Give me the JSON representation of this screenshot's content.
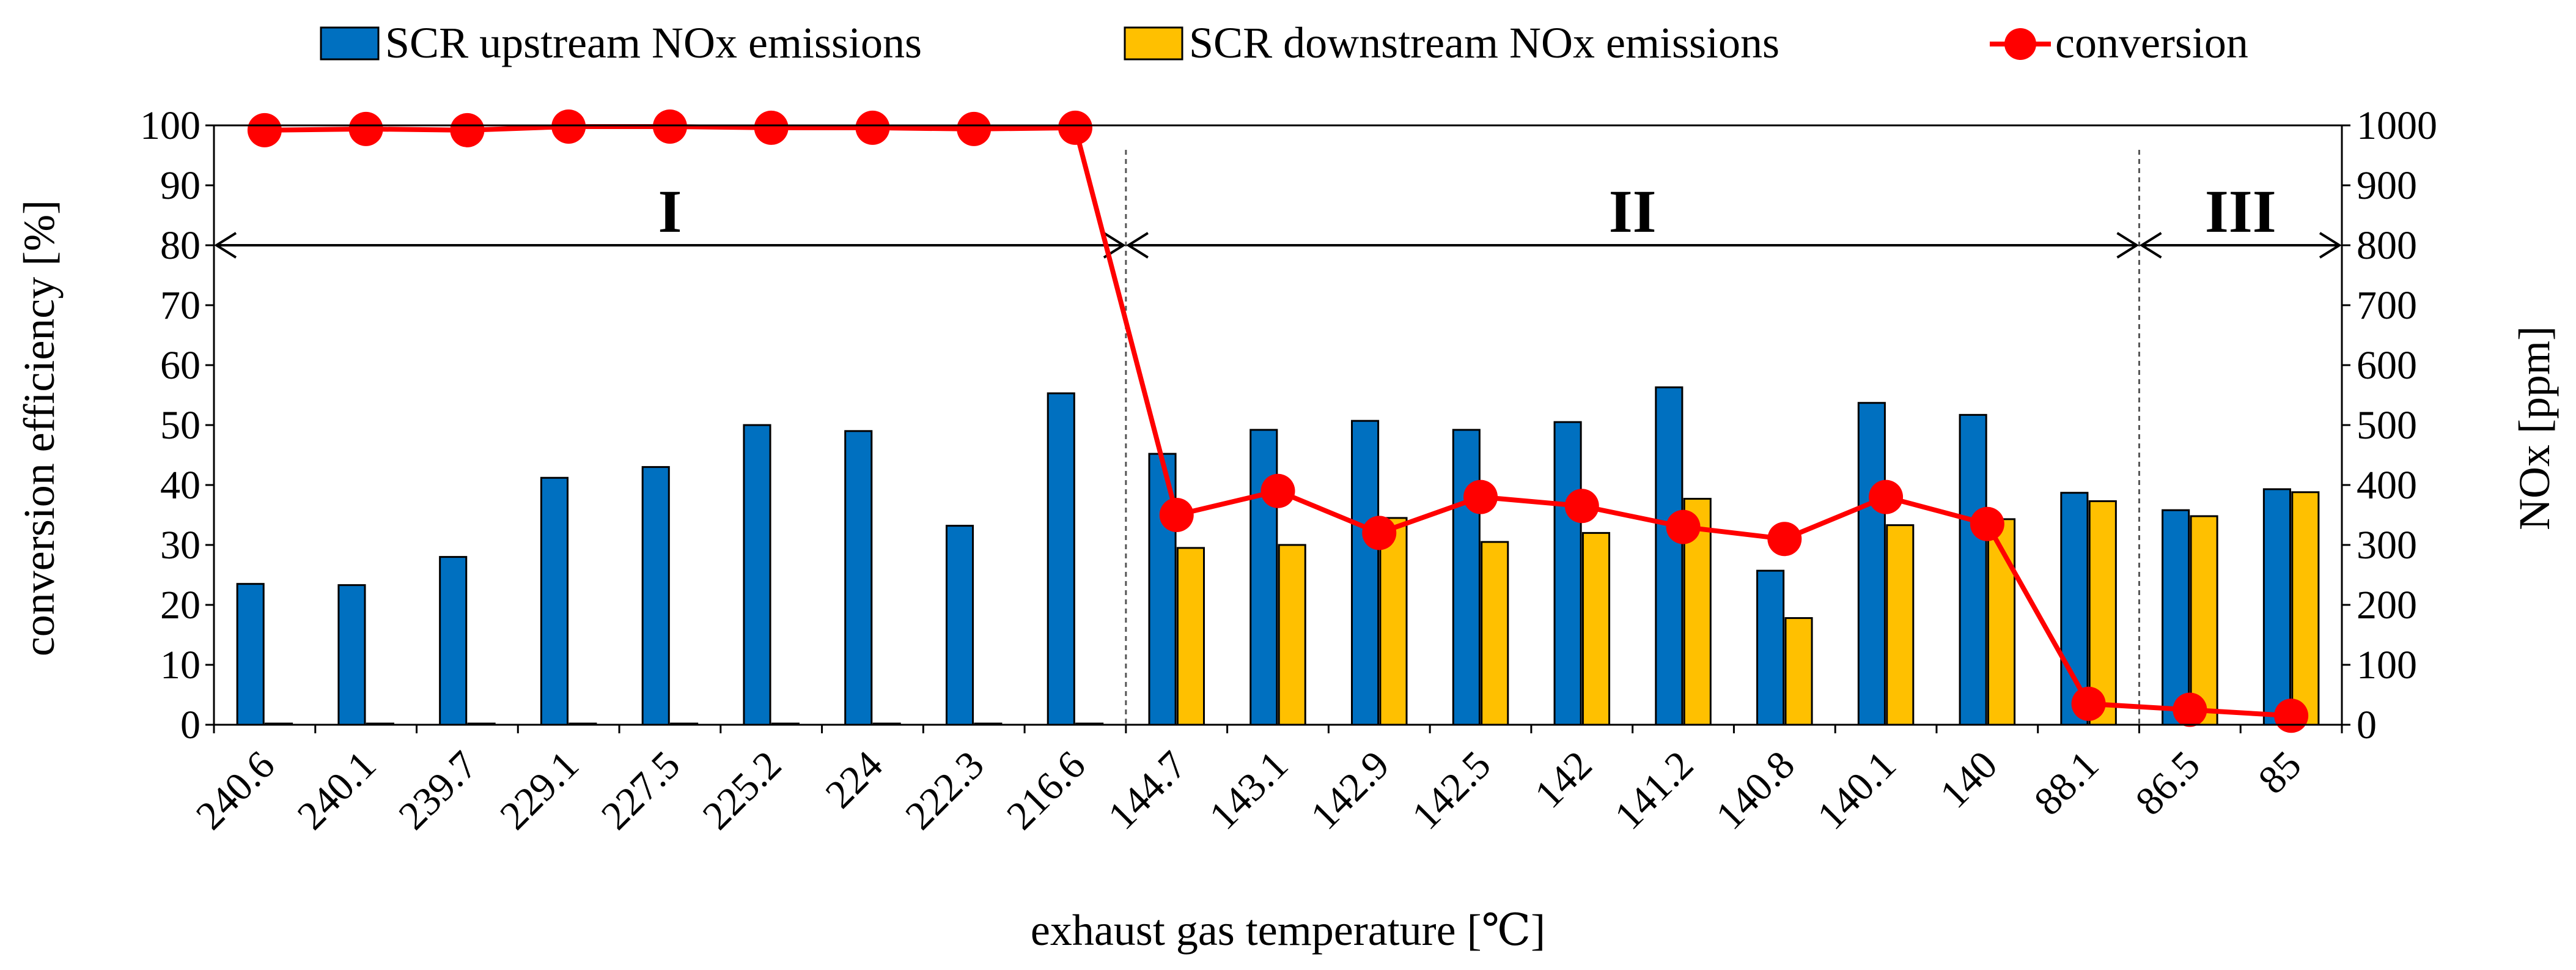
{
  "chart_data": {
    "type": "bar",
    "xlabel": "exhaust gas temperature [℃]",
    "ylabel_left": "conversion efficiency [%]",
    "ylabel_right": "NOx  [ppm]",
    "ylim_left": [
      0,
      100
    ],
    "ylim_right": [
      0,
      1000
    ],
    "yticks_left": [
      0,
      10,
      20,
      30,
      40,
      50,
      60,
      70,
      80,
      90,
      100
    ],
    "yticks_right": [
      0,
      100,
      200,
      300,
      400,
      500,
      600,
      700,
      800,
      900,
      1000
    ],
    "legend_position": "top",
    "categories": [
      "240.6",
      "240.1",
      "239.7",
      "229.1",
      "227.5",
      "225.2",
      "224",
      "222.3",
      "216.6",
      "144.7",
      "143.1",
      "142.9",
      "142.5",
      "142",
      "141.2",
      "140.8",
      "140.1",
      "140",
      "88.1",
      "86.5",
      "85"
    ],
    "series": [
      {
        "name": "SCR upstream NOx emissions",
        "type": "bar",
        "axis": "right",
        "color": "#0070C0",
        "values": [
          235,
          233,
          280,
          412,
          430,
          500,
          490,
          332,
          553,
          452,
          492,
          507,
          492,
          505,
          563,
          257,
          537,
          517,
          387,
          358,
          393
        ]
      },
      {
        "name": "SCR downstream NOx emissions",
        "type": "bar",
        "axis": "right",
        "color": "#FFC000",
        "values": [
          2,
          2,
          2,
          2,
          2,
          2,
          2,
          2,
          2,
          295,
          300,
          345,
          305,
          320,
          377,
          178,
          333,
          343,
          373,
          348,
          388
        ]
      },
      {
        "name": "conversion",
        "type": "line",
        "axis": "left",
        "color": "#FF0000",
        "values": [
          99.2,
          99.4,
          99.2,
          99.8,
          99.8,
          99.6,
          99.6,
          99.4,
          99.6,
          35,
          39,
          32,
          38,
          36.5,
          33,
          31,
          38,
          33.5,
          3.5,
          2.5,
          1.5
        ]
      }
    ],
    "regions": [
      {
        "label": "I",
        "from_index": 0,
        "to_index": 8
      },
      {
        "label": "II",
        "from_index": 8,
        "to_index": 18
      },
      {
        "label": "III",
        "from_index": 18,
        "to_index": 20
      }
    ],
    "region_arrow_level": 80,
    "separator_after_indices": [
      8,
      18
    ]
  }
}
